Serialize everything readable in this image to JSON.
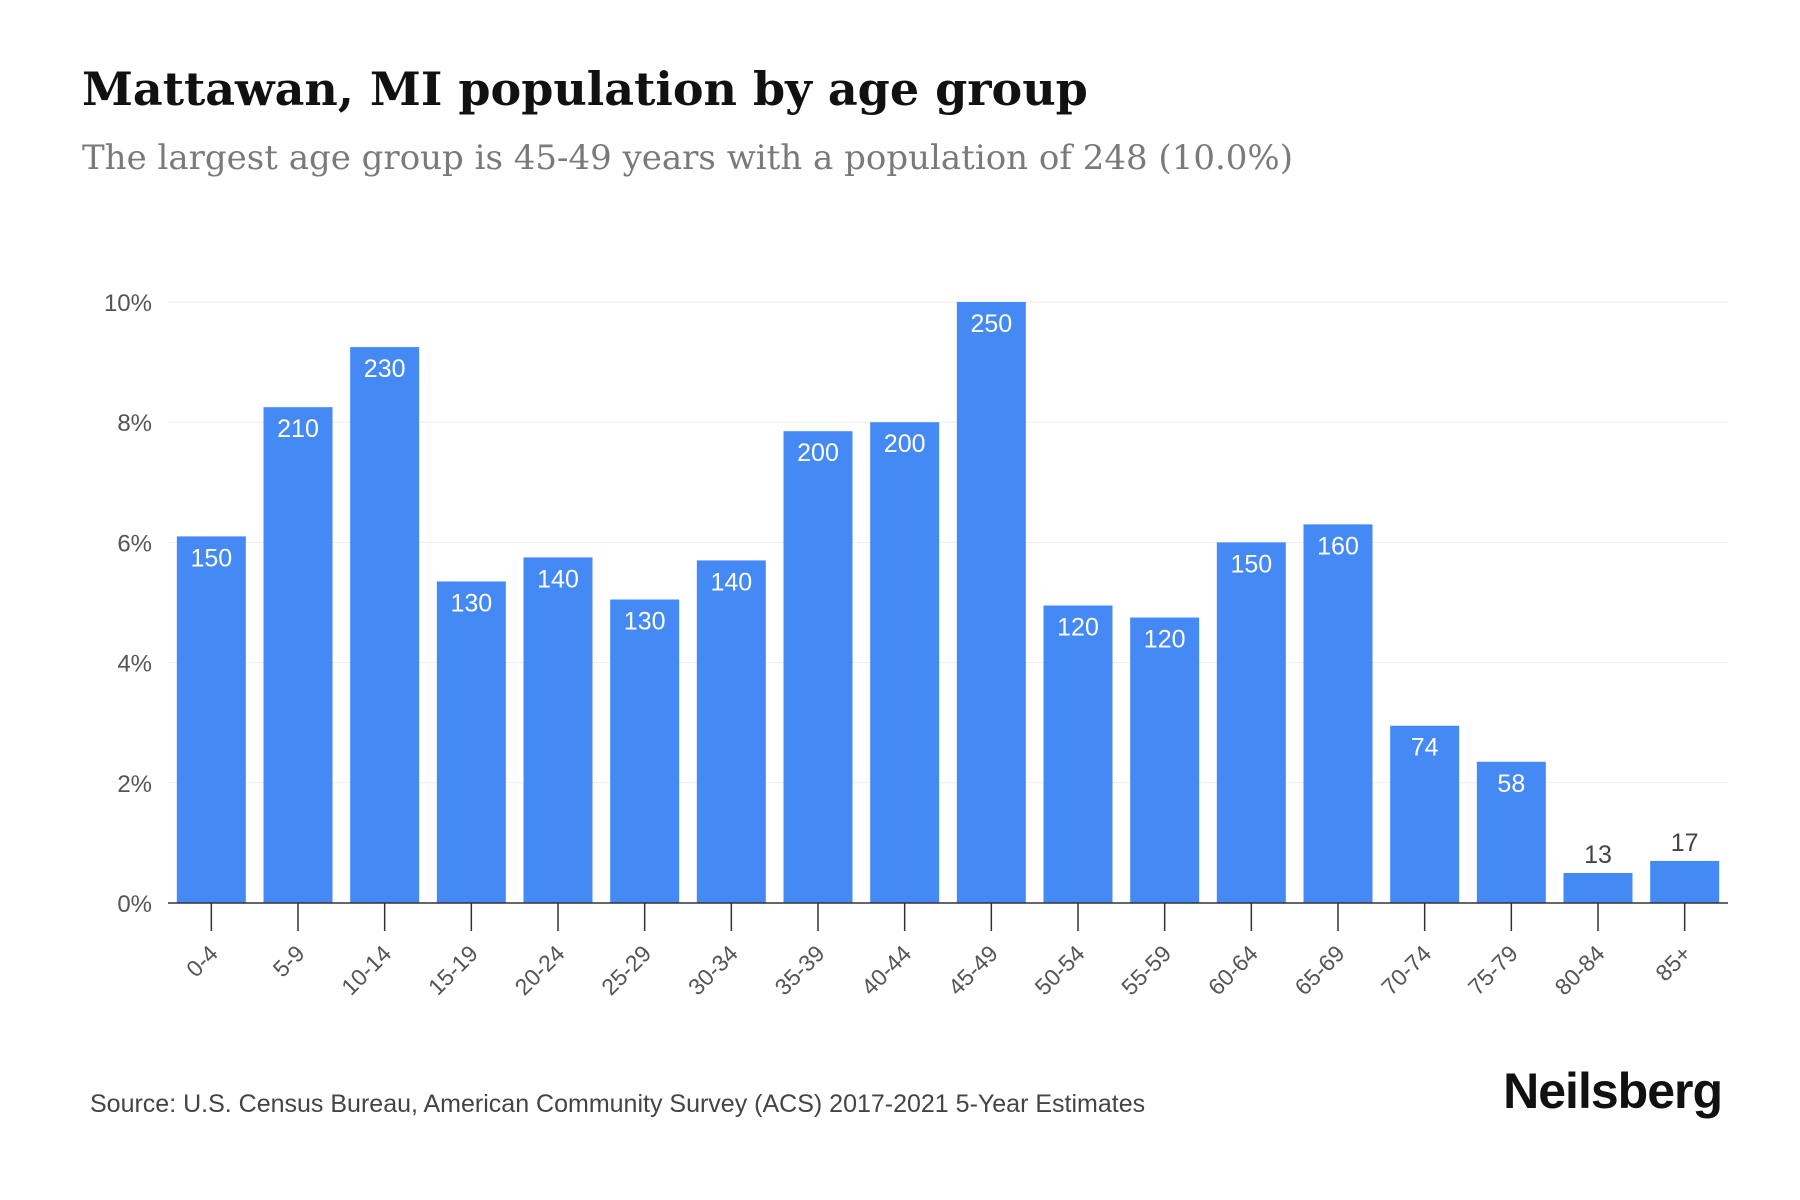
{
  "title": "Mattawan, MI population by age group",
  "subtitle": "The largest age group is 45-49 years with a population of 248 (10.0%)",
  "source": "Source: U.S. Census Bureau, American Community Survey (ACS) 2017-2021 5-Year Estimates",
  "brand": "Neilsberg",
  "colors": {
    "bar": "#4589f5",
    "grid": "#eeeeee",
    "axis": "#333333",
    "tick_text": "#555555"
  },
  "chart_data": {
    "type": "bar",
    "title": "Mattawan, MI population by age group",
    "subtitle": "The largest age group is 45-49 years with a population of 248 (10.0%)",
    "categories": [
      "0-4",
      "5-9",
      "10-14",
      "15-19",
      "20-24",
      "25-29",
      "30-34",
      "35-39",
      "40-44",
      "45-49",
      "50-54",
      "55-59",
      "60-64",
      "65-69",
      "70-74",
      "75-79",
      "80-84",
      "85+"
    ],
    "values": [
      6.1,
      8.25,
      9.25,
      5.35,
      5.75,
      5.05,
      5.7,
      7.85,
      8.0,
      10.0,
      4.95,
      4.75,
      6.0,
      6.3,
      2.95,
      2.35,
      0.5,
      0.7
    ],
    "data_labels": [
      "150",
      "210",
      "230",
      "130",
      "140",
      "130",
      "140",
      "200",
      "200",
      "250",
      "120",
      "120",
      "150",
      "160",
      "74",
      "58",
      "13",
      "17"
    ],
    "y_ticks": [
      "0%",
      "2%",
      "4%",
      "6%",
      "8%",
      "10%"
    ],
    "ylim": [
      0,
      10
    ],
    "ylabel": "",
    "xlabel": "",
    "grid": true
  }
}
